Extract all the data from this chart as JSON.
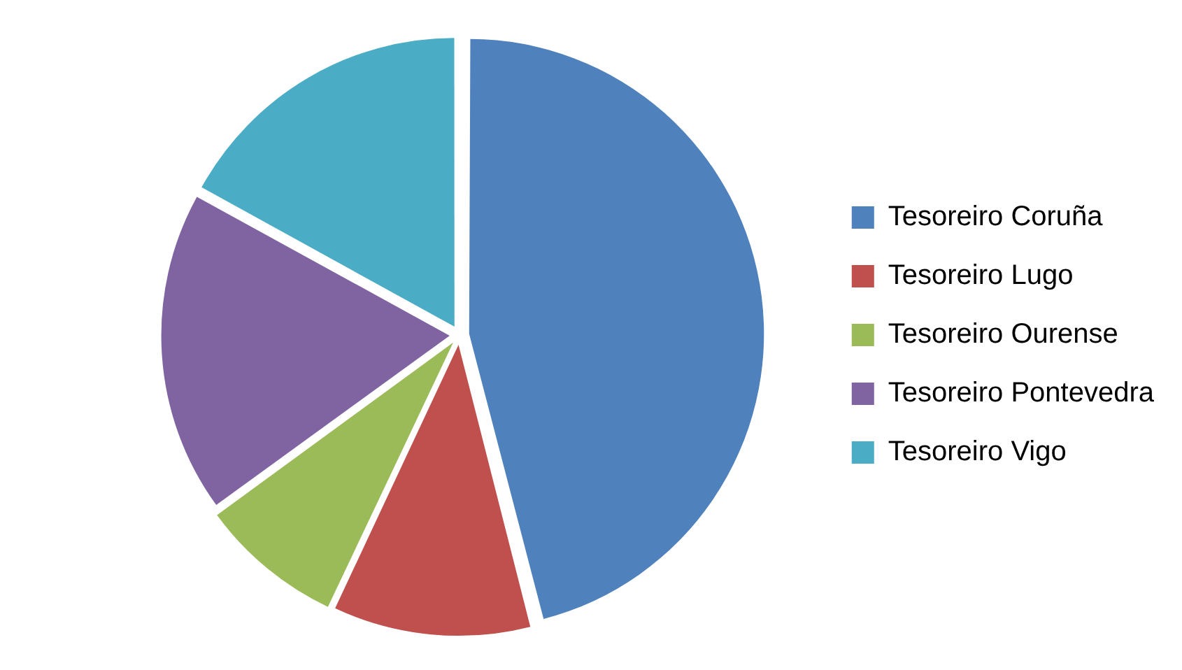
{
  "chart_data": {
    "type": "pie",
    "categories": [
      "Tesoreiro Coruña",
      "Tesoreiro Lugo",
      "Tesoreiro Ourense",
      "Tesoreiro Pontevedra",
      "Tesoreiro Vigo"
    ],
    "values": [
      46,
      11,
      8,
      18,
      17
    ],
    "colors": [
      "#4f81bd",
      "#c0504d",
      "#9bbb59",
      "#8064a2",
      "#4bacc6"
    ],
    "legend": "right"
  }
}
